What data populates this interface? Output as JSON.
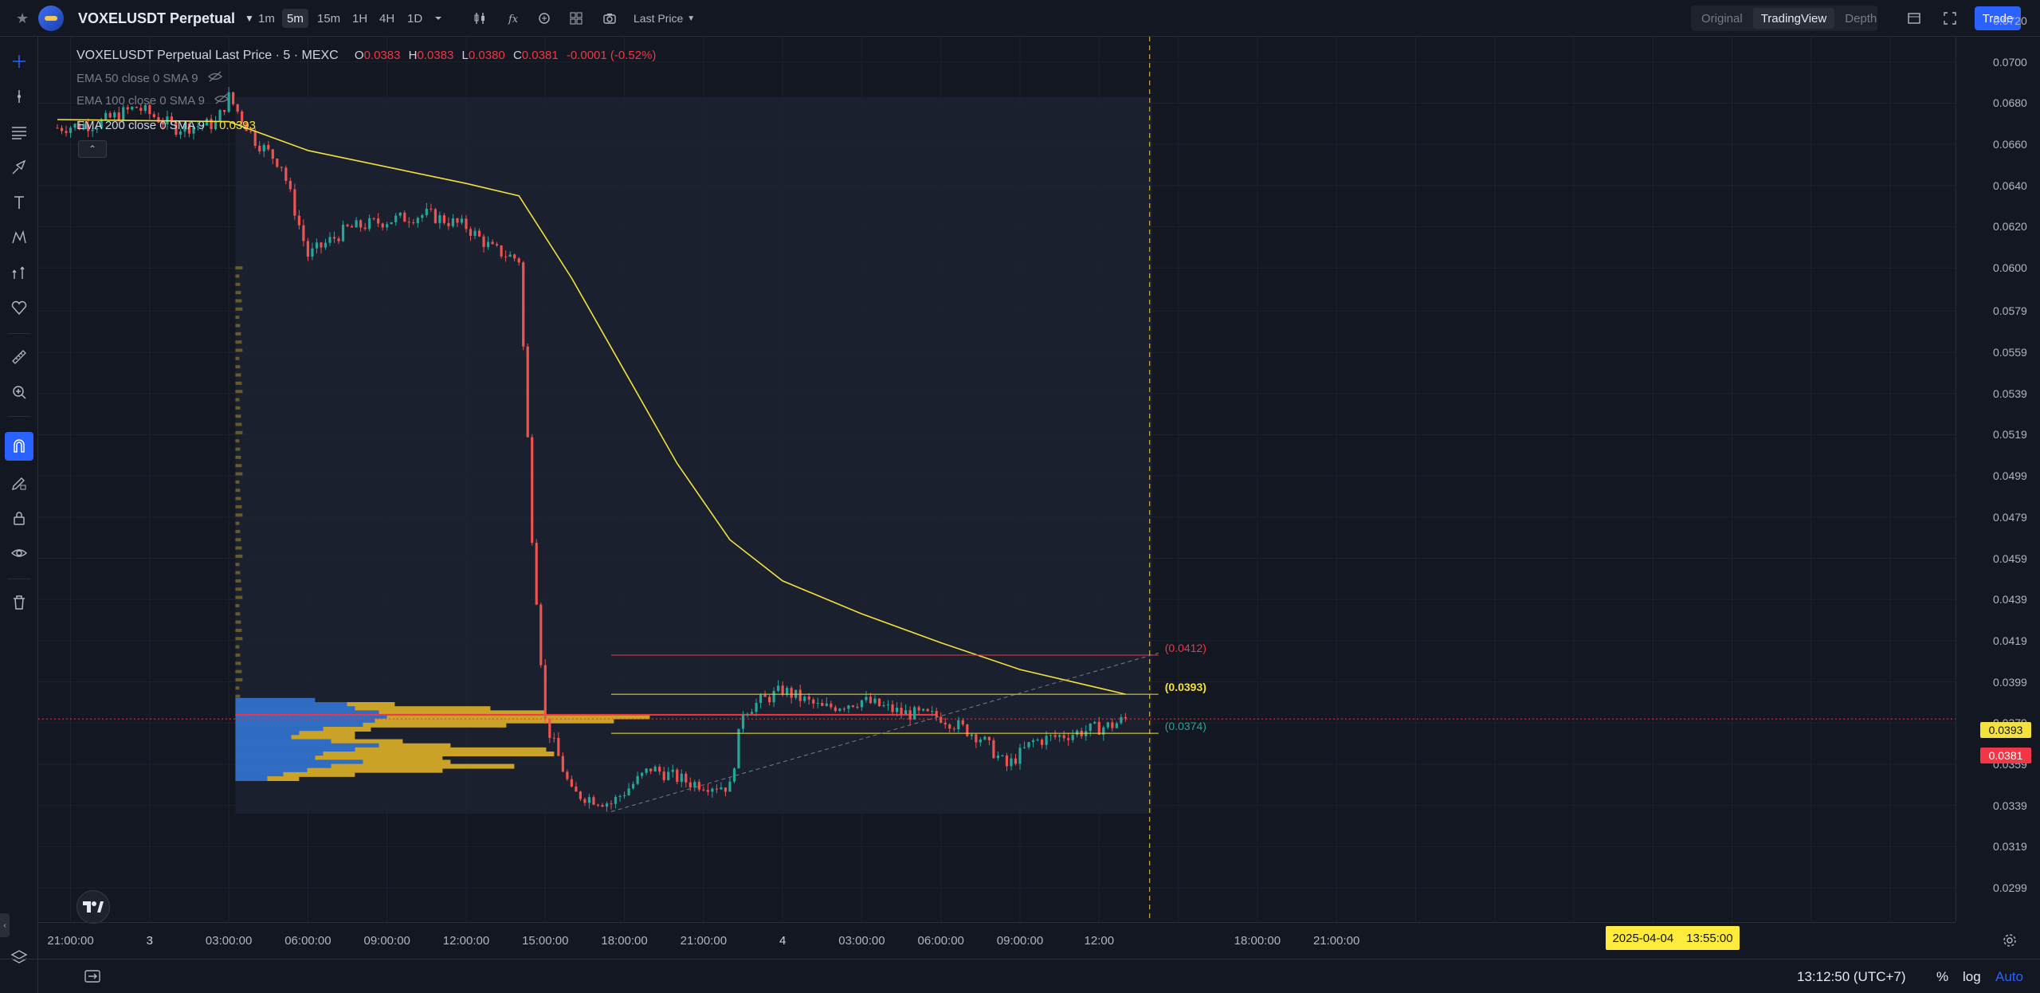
{
  "topbar": {
    "symbol": "VOXELUSDT Perpetual",
    "intervals": [
      "1m",
      "5m",
      "15m",
      "1H",
      "4H",
      "1D"
    ],
    "active_interval": "5m",
    "price_source": "Last Price",
    "views": [
      "Original",
      "TradingView",
      "Depth"
    ],
    "active_view": "TradingView",
    "trade_label": "Trade"
  },
  "legend": {
    "title": "VOXELUSDT Perpetual Last Price · 5 · MEXC",
    "o_label": "O",
    "o": "0.0383",
    "h_label": "H",
    "h": "0.0383",
    "l_label": "L",
    "l": "0.0380",
    "c_label": "C",
    "c": "0.0381",
    "change": "-0.0001 (-0.52%)",
    "ema50": "EMA 50 close 0 SMA 9",
    "ema100": "EMA 100 close 0 SMA 9",
    "ema200": "EMA 200 close 0 SMA 9",
    "ema200_value": "0.0393"
  },
  "price_axis": {
    "labels": [
      "0.0720",
      "0.0700",
      "0.0680",
      "0.0660",
      "0.0640",
      "0.0620",
      "0.0600",
      "0.0579",
      "0.0559",
      "0.0539",
      "0.0519",
      "0.0499",
      "0.0479",
      "0.0459",
      "0.0439",
      "0.0419",
      "0.0399",
      "0.0379",
      "0.0359",
      "0.0339",
      "0.0319",
      "0.0299"
    ],
    "ema_tag": "0.0393",
    "price_tag": "0.0381"
  },
  "time_axis": {
    "labels": [
      "21:00:00",
      "3",
      "03:00:00",
      "06:00:00",
      "09:00:00",
      "12:00:00",
      "15:00:00",
      "18:00:00",
      "21:00:00",
      "4",
      "03:00:00",
      "06:00:00",
      "09:00:00",
      "12:00",
      "18:00:00",
      "21:00:00"
    ],
    "crosshair_date": "2025-04-04",
    "crosshair_time": "13:55:00"
  },
  "levels": {
    "upper": "(0.0412)",
    "mid": "(0.0393)",
    "lower": "(0.0374)"
  },
  "bottombar": {
    "clock": "13:12:50 (UTC+7)",
    "percent": "%",
    "log": "log",
    "auto": "Auto"
  },
  "colors": {
    "background": "#131722",
    "up": "#26a69a",
    "down": "#ef5350",
    "ema200": "#f5e13d",
    "volume_buy": "#2f6cc2",
    "volume_sell": "#c9a227",
    "accent": "#2962ff"
  },
  "chart_data": {
    "type": "candlestick",
    "x_range": [
      "2025-04-02 20:30",
      "2025-04-05 21:30"
    ],
    "y_range": [
      0.0299,
      0.072
    ],
    "price_path": [
      [
        "2025-04-02 20:30",
        0.0668
      ],
      [
        "2025-04-02 22:00",
        0.067
      ],
      [
        "2025-04-02 23:30",
        0.0678
      ],
      [
        "2025-04-03 01:00",
        0.0668
      ],
      [
        "2025-04-03 02:30",
        0.067
      ],
      [
        "2025-04-03 03:00",
        0.0683
      ],
      [
        "2025-04-03 04:00",
        0.0662
      ],
      [
        "2025-04-03 05:00",
        0.065
      ],
      [
        "2025-04-03 06:00",
        0.0606
      ],
      [
        "2025-04-03 07:30",
        0.0619
      ],
      [
        "2025-04-03 09:00",
        0.0623
      ],
      [
        "2025-04-03 10:30",
        0.0626
      ],
      [
        "2025-04-03 12:00",
        0.062
      ],
      [
        "2025-04-03 13:00",
        0.0609
      ],
      [
        "2025-04-03 14:00",
        0.0604
      ],
      [
        "2025-04-03 14:15",
        0.054
      ],
      [
        "2025-04-03 14:30",
        0.047
      ],
      [
        "2025-04-03 15:00",
        0.038
      ],
      [
        "2025-04-03 16:00",
        0.0345
      ],
      [
        "2025-04-03 17:30",
        0.034
      ],
      [
        "2025-04-03 19:00",
        0.0357
      ],
      [
        "2025-04-03 20:30",
        0.035
      ],
      [
        "2025-04-03 22:00",
        0.0348
      ],
      [
        "2025-04-03 22:30",
        0.0385
      ],
      [
        "2025-04-04 00:00",
        0.0395
      ],
      [
        "2025-04-04 01:30",
        0.0386
      ],
      [
        "2025-04-04 03:00",
        0.039
      ],
      [
        "2025-04-04 04:30",
        0.0384
      ],
      [
        "2025-04-04 06:00",
        0.0382
      ],
      [
        "2025-04-04 07:30",
        0.0372
      ],
      [
        "2025-04-04 08:30",
        0.0358
      ],
      [
        "2025-04-04 09:30",
        0.037
      ],
      [
        "2025-04-04 11:00",
        0.0374
      ],
      [
        "2025-04-04 12:30",
        0.0378
      ],
      [
        "2025-04-04 13:00",
        0.0381
      ]
    ],
    "ema200_path": [
      [
        "2025-04-02 20:30",
        0.0672
      ],
      [
        "2025-04-03 03:00",
        0.0671
      ],
      [
        "2025-04-03 06:00",
        0.0657
      ],
      [
        "2025-04-03 12:00",
        0.0641
      ],
      [
        "2025-04-03 14:00",
        0.0635
      ],
      [
        "2025-04-03 16:00",
        0.0595
      ],
      [
        "2025-04-03 18:00",
        0.055
      ],
      [
        "2025-04-03 20:00",
        0.0505
      ],
      [
        "2025-04-03 22:00",
        0.0468
      ],
      [
        "2025-04-04 00:00",
        0.0448
      ],
      [
        "2025-04-04 03:00",
        0.0432
      ],
      [
        "2025-04-04 06:00",
        0.0418
      ],
      [
        "2025-04-04 09:00",
        0.0405
      ],
      [
        "2025-04-04 12:00",
        0.0396
      ],
      [
        "2025-04-04 13:00",
        0.0393
      ]
    ],
    "horizontal_levels": [
      0.0412,
      0.0393,
      0.0374
    ],
    "last_price": 0.0381,
    "ema200_last": 0.0393
  }
}
